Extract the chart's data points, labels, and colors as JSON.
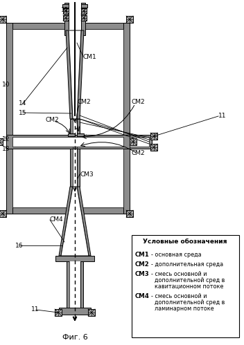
{
  "fig_label": "Фиг. 6",
  "legend_title": "Условные обозначения",
  "legend_items": [
    {
      "key": "СМ1",
      "text": "основная среда"
    },
    {
      "key": "СМ2",
      "text": "дополнительная среда"
    },
    {
      "key": "СМ3",
      "text": "смесь основной и\nдополнительной сред в\nкавитационном потоке"
    },
    {
      "key": "СМ4",
      "text": "смесь основной и\nдополнительной сред в\nламинарном потоке"
    }
  ],
  "bg_color": "#ffffff",
  "gray_dark": 0.55,
  "gray_light": 0.72,
  "figsize": [
    3.52,
    4.99
  ],
  "dpi": 100
}
